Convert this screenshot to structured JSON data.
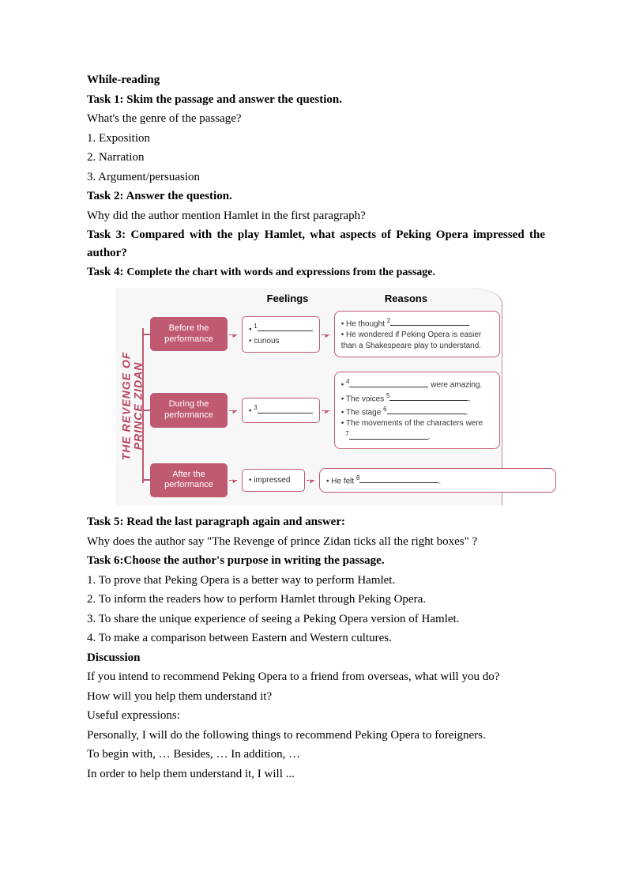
{
  "heading1": "While-reading",
  "task1_title": "Task 1: Skim the passage and answer the question.",
  "task1_q": "What's the genre of the passage?",
  "task1_opts": [
    "1. Exposition",
    "2. Narration",
    "3. Argument/persuasion"
  ],
  "task2_title": "Task 2: Answer the question.",
  "task2_q": "Why did the author mention Hamlet in the first paragraph?",
  "task3_title": "Task 3: Compared with the play Hamlet, what aspects of Peking Opera impressed the author?",
  "task4_title": "Task 4: ",
  "task4_rest": "Complete the chart with words and expressions from the passage.",
  "chart": {
    "vtitle_line1": "THE REVENGE OF",
    "vtitle_line2": "PRINCE ZIDAN",
    "header_feelings": "Feelings",
    "header_reasons": "Reasons",
    "stage_box_color": "#c05a70",
    "border_color": "#c05a70",
    "rows": [
      {
        "stage": "Before the performance",
        "feel_sup": "1",
        "feel_extra": "• curious",
        "reasons": [
          {
            "pre": "• He thought ",
            "sup": "2"
          },
          {
            "pre": "• He wondered if Peking Opera is easier"
          },
          {
            "pre": "  than a Shakespeare play to understand."
          }
        ]
      },
      {
        "stage": "During the performance",
        "feel_sup": "3",
        "reasons": [
          {
            "sup": "4",
            "post": " were amazing."
          },
          {
            "pre": "• The voices ",
            "sup": "5"
          },
          {
            "pre": "• The stage ",
            "sup": "6"
          },
          {
            "pre": "• The movements of the characters were"
          },
          {
            "sup": "7"
          }
        ]
      },
      {
        "stage": "After the performance",
        "feel_static": "• impressed",
        "reasons": [
          {
            "pre": "• He felt ",
            "sup": "8"
          }
        ]
      }
    ]
  },
  "task5_title": "Task 5: Read the last paragraph again and answer:",
  "task5_q": "Why does the author say    \"The Revenge of prince Zidan ticks all the right boxes\" ?",
  "task6_title": "Task 6:Choose the author's purpose in writing the passage.",
  "task6_opts": [
    "1. To prove that Peking Opera is a better way to perform Hamlet.",
    "2. To inform the readers how to perform Hamlet through Peking Opera.",
    "3. To share the unique experience of seeing a Peking Opera version of Hamlet.",
    "4. To make a comparison between Eastern and Western cultures."
  ],
  "discussion_title": "Discussion",
  "discussion_lines": [
    "If you intend to recommend Peking Opera to a friend from overseas, what will you do?",
    "How will you help them understand it?",
    "Useful expressions:",
    "Personally, I will do the following things to recommend Peking Opera to foreigners.",
    "To begin with, … Besides, … In addition, …",
    "In order to help them understand it, I will ..."
  ]
}
